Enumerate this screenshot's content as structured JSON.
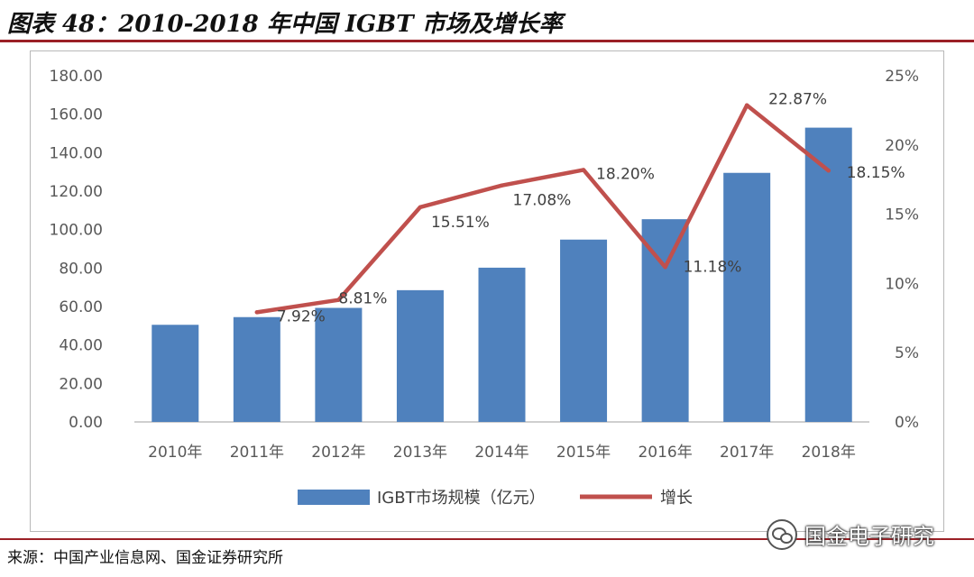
{
  "figure": {
    "title": "图表 48：2010-2018 年中国 IGBT 市场及增长率",
    "source": "来源：中国产业信息网、国金证券研究所",
    "watermark": "国金电子研究"
  },
  "chart_data": {
    "type": "bar",
    "categories": [
      "2010年",
      "2011年",
      "2012年",
      "2013年",
      "2014年",
      "2015年",
      "2016年",
      "2017年",
      "2018年"
    ],
    "series": [
      {
        "name": "IGBT市场规模（亿元）",
        "kind": "bar",
        "axis": "left",
        "color": "#4f81bd",
        "values": [
          50.5,
          54.5,
          59.3,
          68.5,
          80.2,
          94.8,
          105.4,
          129.5,
          153.0
        ]
      },
      {
        "name": "增长",
        "kind": "line",
        "axis": "right",
        "color": "#c0504d",
        "values": [
          null,
          7.92,
          8.81,
          15.51,
          17.08,
          18.2,
          11.18,
          22.87,
          18.15
        ],
        "labels": [
          "",
          "7.92%",
          "8.81%",
          "15.51%",
          "17.08%",
          "18.20%",
          "11.18%",
          "22.87%",
          "18.15%"
        ]
      }
    ],
    "y_left": {
      "range": [
        0,
        180
      ],
      "ticks": [
        0,
        20,
        40,
        60,
        80,
        100,
        120,
        140,
        160,
        180
      ],
      "tick_labels": [
        "0.00",
        "20.00",
        "40.00",
        "60.00",
        "80.00",
        "100.00",
        "120.00",
        "140.00",
        "160.00",
        "180.00"
      ]
    },
    "y_right": {
      "range": [
        0,
        25
      ],
      "ticks": [
        0,
        5,
        10,
        15,
        20,
        25
      ],
      "tick_labels": [
        "0%",
        "5%",
        "10%",
        "15%",
        "20%",
        "25%"
      ]
    },
    "grid": false,
    "legend_position": "bottom"
  }
}
